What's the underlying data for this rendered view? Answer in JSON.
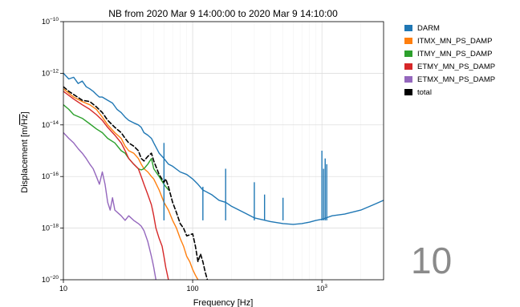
{
  "chart_data": {
    "type": "line",
    "title": "NB from 2020 Mar 9 14:00:00 to 2020 Mar 9 14:10:00",
    "xlabel": "Frequency [Hz]",
    "ylabel_main": "Displacement [m/",
    "ylabel_root": "Hz",
    "ylabel_end": "]",
    "xscale": "log",
    "yscale": "log",
    "xlim": [
      10,
      3000
    ],
    "ylim": [
      1e-20,
      1e-10
    ],
    "x_ticks": [
      {
        "value": 10,
        "label": "10"
      },
      {
        "value": 100,
        "label": "100"
      },
      {
        "value": 1000,
        "label": "10",
        "exp": "3"
      }
    ],
    "y_ticks": [
      {
        "value": 1e-20,
        "label": "10",
        "exp": "−20"
      },
      {
        "value": 1e-18,
        "label": "10",
        "exp": "−18"
      },
      {
        "value": 1e-16,
        "label": "10",
        "exp": "−16"
      },
      {
        "value": 1e-14,
        "label": "10",
        "exp": "−14"
      },
      {
        "value": 1e-12,
        "label": "10",
        "exp": "−12"
      },
      {
        "value": 1e-10,
        "label": "10",
        "exp": "−10"
      }
    ],
    "grid": true,
    "legend_position": "outside-right",
    "series": [
      {
        "name": "DARM",
        "color": "#1f77b4",
        "dashed": false,
        "points": [
          [
            10,
            1e-12
          ],
          [
            11,
            6e-13
          ],
          [
            12,
            7e-13
          ],
          [
            13,
            4e-13
          ],
          [
            14,
            5e-13
          ],
          [
            15,
            3e-13
          ],
          [
            16,
            2.5e-13
          ],
          [
            17,
            2e-13
          ],
          [
            18,
            1.5e-13
          ],
          [
            19,
            1.2e-13
          ],
          [
            20,
            1.2e-13
          ],
          [
            22,
            9e-14
          ],
          [
            24,
            7e-14
          ],
          [
            26,
            4e-14
          ],
          [
            28,
            3e-14
          ],
          [
            30,
            2e-14
          ],
          [
            32,
            1.5e-14
          ],
          [
            35,
            1.2e-14
          ],
          [
            38,
            1e-14
          ],
          [
            40,
            8e-15
          ],
          [
            42,
            5e-15
          ],
          [
            45,
            4e-15
          ],
          [
            48,
            3e-15
          ],
          [
            50,
            2e-15
          ],
          [
            55,
            8e-16
          ],
          [
            60,
            5e-16
          ],
          [
            65,
            3e-16
          ],
          [
            70,
            2.5e-16
          ],
          [
            80,
            1.5e-16
          ],
          [
            90,
            1.2e-16
          ],
          [
            100,
            8e-17
          ],
          [
            110,
            5e-17
          ],
          [
            120,
            3e-17
          ],
          [
            140,
            2e-17
          ],
          [
            160,
            1.2e-17
          ],
          [
            180,
            1e-17
          ],
          [
            200,
            7e-18
          ],
          [
            250,
            4e-18
          ],
          [
            300,
            2.5e-18
          ],
          [
            400,
            1.8e-18
          ],
          [
            500,
            1.5e-18
          ],
          [
            600,
            1.4e-18
          ],
          [
            700,
            1.5e-18
          ],
          [
            800,
            1.7e-18
          ],
          [
            900,
            2e-18
          ],
          [
            1000,
            2.2e-18
          ],
          [
            1200,
            3e-18
          ],
          [
            1500,
            3.5e-18
          ],
          [
            2000,
            5e-18
          ],
          [
            2500,
            8e-18
          ],
          [
            3000,
            1.2e-17
          ]
        ],
        "spikes": [
          [
            60,
            2e-15
          ],
          [
            120,
            4e-17
          ],
          [
            180,
            2e-16
          ],
          [
            300,
            6e-17
          ],
          [
            360,
            2e-17
          ],
          [
            500,
            1.5e-17
          ],
          [
            1000,
            1e-15
          ],
          [
            1030,
            2e-16
          ],
          [
            1060,
            5e-16
          ],
          [
            1090,
            3e-16
          ]
        ]
      },
      {
        "name": "ITMX_MN_PS_DAMP",
        "color": "#ff7f0e",
        "dashed": false,
        "points": [
          [
            10,
            2.5e-13
          ],
          [
            12,
            1.2e-13
          ],
          [
            14,
            8e-14
          ],
          [
            16,
            6e-14
          ],
          [
            18,
            4e-14
          ],
          [
            20,
            2e-14
          ],
          [
            22,
            1e-14
          ],
          [
            25,
            5e-15
          ],
          [
            28,
            3e-15
          ],
          [
            30,
            1.5e-15
          ],
          [
            32,
            1e-15
          ],
          [
            35,
            8e-16
          ],
          [
            38,
            5e-16
          ],
          [
            40,
            3e-16
          ],
          [
            42,
            2e-16
          ],
          [
            45,
            1.5e-16
          ],
          [
            48,
            1e-16
          ],
          [
            50,
            8e-17
          ],
          [
            55,
            3e-17
          ],
          [
            60,
            1e-17
          ],
          [
            65,
            5e-18
          ],
          [
            70,
            2e-18
          ],
          [
            75,
            1e-18
          ],
          [
            80,
            4e-19
          ],
          [
            85,
            2e-19
          ],
          [
            90,
            8e-20
          ],
          [
            95,
            5e-20
          ],
          [
            100,
            2.5e-20
          ],
          [
            105,
            1.5e-20
          ],
          [
            110,
            1e-20
          ]
        ]
      },
      {
        "name": "ITMY_MN_PS_DAMP",
        "color": "#2ca02c",
        "dashed": false,
        "points": [
          [
            10,
            6e-14
          ],
          [
            11,
            4e-14
          ],
          [
            12,
            2.5e-14
          ],
          [
            14,
            1.8e-14
          ],
          [
            16,
            1.1e-14
          ],
          [
            18,
            7e-15
          ],
          [
            20,
            5e-15
          ],
          [
            22,
            3e-15
          ],
          [
            25,
            2e-15
          ],
          [
            28,
            1e-15
          ],
          [
            30,
            8e-16
          ],
          [
            32,
            5e-16
          ],
          [
            35,
            3e-16
          ],
          [
            38,
            2e-16
          ],
          [
            40,
            1.8e-16
          ],
          [
            42,
            2e-16
          ],
          [
            45,
            3e-16
          ],
          [
            48,
            5e-16
          ],
          [
            50,
            2e-16
          ],
          [
            55,
            1e-16
          ],
          [
            60,
            5e-17
          ],
          [
            65,
            3e-17
          ]
        ]
      },
      {
        "name": "ETMY_MN_PS_DAMP",
        "color": "#d62728",
        "dashed": false,
        "points": [
          [
            10,
            2e-13
          ],
          [
            12,
            1e-13
          ],
          [
            14,
            6e-14
          ],
          [
            16,
            4e-14
          ],
          [
            18,
            2.5e-14
          ],
          [
            20,
            1.5e-14
          ],
          [
            22,
            8e-15
          ],
          [
            25,
            4e-15
          ],
          [
            28,
            2e-15
          ],
          [
            30,
            1e-15
          ],
          [
            32,
            5e-16
          ],
          [
            35,
            3e-16
          ],
          [
            38,
            2e-16
          ],
          [
            40,
            1e-16
          ],
          [
            42,
            5e-17
          ],
          [
            45,
            2e-17
          ],
          [
            48,
            8e-18
          ],
          [
            50,
            3e-18
          ],
          [
            52,
            1e-18
          ],
          [
            55,
            4e-19
          ],
          [
            58,
            2e-19
          ],
          [
            60,
            8e-20
          ],
          [
            62,
            3e-20
          ],
          [
            65,
            1e-20
          ]
        ]
      },
      {
        "name": "ETMX_MN_PS_DAMP",
        "color": "#9467bd",
        "dashed": false,
        "points": [
          [
            10,
            5e-15
          ],
          [
            11,
            3e-15
          ],
          [
            12,
            2e-15
          ],
          [
            13,
            1.2e-15
          ],
          [
            14,
            8e-16
          ],
          [
            15,
            5e-16
          ],
          [
            16,
            3e-16
          ],
          [
            17,
            2e-16
          ],
          [
            18,
            1e-16
          ],
          [
            19,
            5e-17
          ],
          [
            20,
            1.5e-16
          ],
          [
            21,
            5e-17
          ],
          [
            22,
            1e-17
          ],
          [
            23,
            5e-18
          ],
          [
            24,
            1.5e-17
          ],
          [
            25,
            5e-18
          ],
          [
            28,
            3e-18
          ],
          [
            30,
            2e-18
          ],
          [
            32,
            3e-18
          ],
          [
            35,
            2e-18
          ],
          [
            38,
            1.5e-18
          ],
          [
            40,
            1.2e-18
          ],
          [
            42,
            8e-19
          ],
          [
            45,
            3e-19
          ],
          [
            48,
            8e-20
          ],
          [
            50,
            3e-20
          ],
          [
            52,
            1e-20
          ]
        ]
      },
      {
        "name": "total",
        "color": "#000000",
        "dashed": true,
        "points": [
          [
            10,
            3e-13
          ],
          [
            11,
            2e-13
          ],
          [
            12,
            1.5e-13
          ],
          [
            14,
            9e-14
          ],
          [
            16,
            8e-14
          ],
          [
            18,
            5e-14
          ],
          [
            20,
            3e-14
          ],
          [
            22,
            1.5e-14
          ],
          [
            25,
            8e-15
          ],
          [
            28,
            5e-15
          ],
          [
            30,
            3e-15
          ],
          [
            32,
            2e-15
          ],
          [
            35,
            1.5e-15
          ],
          [
            38,
            1e-15
          ],
          [
            40,
            5e-16
          ],
          [
            42,
            4e-16
          ],
          [
            45,
            6e-16
          ],
          [
            48,
            8e-16
          ],
          [
            50,
            4e-16
          ],
          [
            55,
            1.2e-16
          ],
          [
            60,
            6e-17
          ],
          [
            62,
            8e-17
          ],
          [
            65,
            4e-17
          ],
          [
            70,
            1e-17
          ],
          [
            75,
            4e-18
          ],
          [
            80,
            1.5e-18
          ],
          [
            85,
            1e-18
          ],
          [
            90,
            5e-19
          ],
          [
            100,
            6e-19
          ],
          [
            105,
            2e-19
          ],
          [
            110,
            5e-20
          ],
          [
            115,
            1e-19
          ],
          [
            120,
            5e-20
          ],
          [
            125,
            2e-20
          ],
          [
            130,
            1e-20
          ]
        ]
      }
    ]
  },
  "page_number": "10"
}
